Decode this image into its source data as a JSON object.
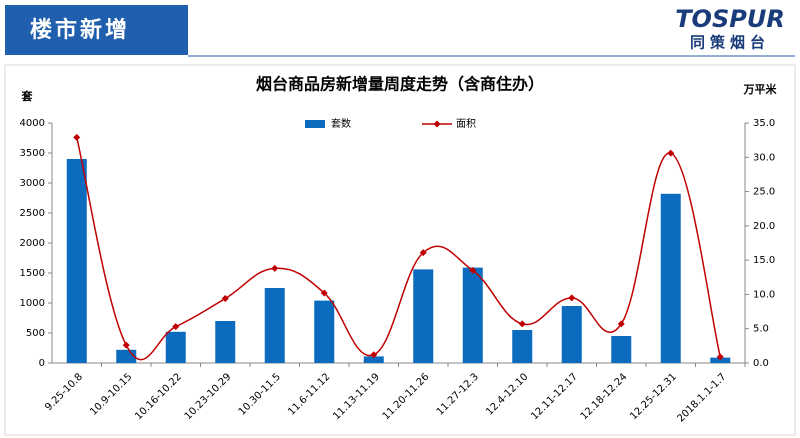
{
  "header": {
    "title": "楼市新增"
  },
  "logo": {
    "brand": "TOSPUR",
    "name": "同策烟台"
  },
  "chart_data": {
    "type": "bar_line",
    "title": "烟台商品房新增量周度走势（含商住办）",
    "y_label": "套",
    "y2_label": "万平米",
    "categories": [
      "9.25-10.8",
      "10.9-10.15",
      "10.16-10.22",
      "10.23-10.29",
      "10.30-11.5",
      "11.6-11.12",
      "11.13-11.19",
      "11.20-11.26",
      "11.27-12.3",
      "12.4-12.10",
      "12.11-12.17",
      "12.18-12.24",
      "12.25-12.31",
      "2018.1.1-1.7"
    ],
    "series": [
      {
        "name": "套数",
        "type": "bar",
        "color": "#0a6bbf",
        "values": [
          3400,
          220,
          520,
          700,
          1250,
          1040,
          110,
          1560,
          1590,
          550,
          950,
          450,
          2820,
          90
        ]
      },
      {
        "name": "面积",
        "type": "line",
        "axis": "y2",
        "color": "#c00000",
        "values": [
          32.9,
          2.6,
          5.3,
          9.4,
          13.8,
          10.2,
          1.2,
          16.1,
          13.5,
          5.7,
          9.5,
          5.7,
          30.6,
          0.9
        ]
      }
    ],
    "ylim": [
      0,
      4000
    ],
    "yticks": [
      0,
      500,
      1000,
      1500,
      2000,
      2500,
      3000,
      3500,
      4000
    ],
    "y2lim": [
      0,
      35
    ],
    "y2ticks": [
      {
        "value": 0,
        "label": "0.0"
      },
      {
        "value": 5,
        "label": "5.0"
      },
      {
        "value": 10,
        "label": "10.0"
      },
      {
        "value": 15,
        "label": "15.0"
      },
      {
        "value": 20,
        "label": "20.0"
      },
      {
        "value": 25,
        "label": "25.0"
      },
      {
        "value": 30,
        "label": "30.0"
      },
      {
        "value": 35,
        "label": "35.0"
      }
    ],
    "legend": "top"
  }
}
